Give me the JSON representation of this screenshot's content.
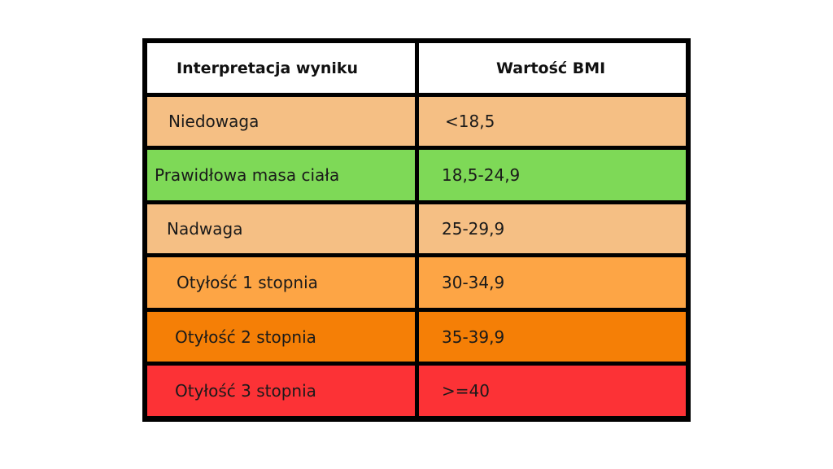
{
  "table": {
    "headers": [
      "Interpretacja wyniku",
      "Wartość BMI"
    ],
    "header_bg": "#ffffff",
    "rows": [
      {
        "label": "Niedowaga",
        "value": "<18,5",
        "color": "#f5bf84"
      },
      {
        "label": "Prawidłowa masa ciała",
        "value": "18,5-24,9",
        "color": "#7ed957"
      },
      {
        "label": "Nadwaga",
        "value": "25-29,9",
        "color": "#f5bf84"
      },
      {
        "label": "Otyłość 1 stopnia",
        "value": "30-34,9",
        "color": "#fda545"
      },
      {
        "label": "Otyłość 2 stopnia",
        "value": "35-39,9",
        "color": "#f57f06"
      },
      {
        "label": "Otyłość 3 stopnia",
        "value": ">=40",
        "color": "#fc3236"
      }
    ]
  }
}
